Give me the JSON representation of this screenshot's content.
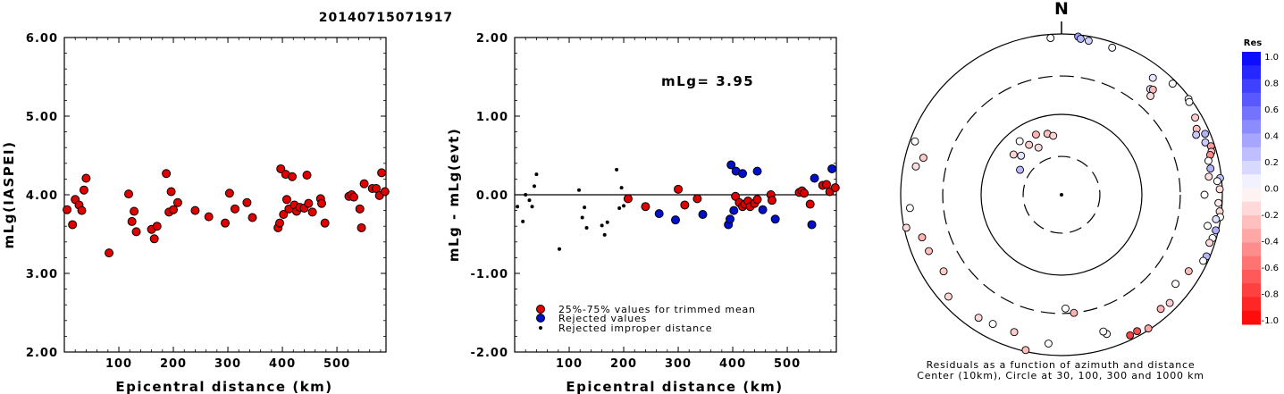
{
  "title": "20140715071917",
  "colors": {
    "accepted": "#e00000",
    "rejected": "#0010c8",
    "improper": "#000000"
  },
  "chart_data": [
    {
      "type": "scatter",
      "xlabel": "Epicentral distance (km)",
      "ylabel": "mLg(IASPEI)",
      "xlim": [
        0,
        590
      ],
      "ylim": [
        2.0,
        6.0
      ],
      "x_ticks": [
        "100",
        "200",
        "300",
        "400",
        "500"
      ],
      "y_ticks": [
        "2.00",
        "3.00",
        "4.00",
        "5.00",
        "6.00"
      ],
      "series": [
        {
          "points": [
            [
              5,
              3.81
            ],
            [
              15,
              3.62
            ],
            [
              20,
              3.94
            ],
            [
              27,
              3.87
            ],
            [
              32,
              3.8
            ],
            [
              36,
              4.06
            ],
            [
              40,
              4.21
            ],
            [
              82,
              3.26
            ],
            [
              118,
              4.01
            ],
            [
              124,
              3.66
            ],
            [
              128,
              3.79
            ],
            [
              132,
              3.53
            ],
            [
              160,
              3.56
            ],
            [
              165,
              3.44
            ],
            [
              170,
              3.6
            ],
            [
              187,
              4.27
            ],
            [
              192,
              3.78
            ],
            [
              196,
              4.04
            ],
            [
              200,
              3.81
            ],
            [
              208,
              3.9
            ],
            [
              240,
              3.8
            ],
            [
              265,
              3.72
            ],
            [
              295,
              3.64
            ],
            [
              303,
              4.02
            ],
            [
              313,
              3.82
            ],
            [
              335,
              3.9
            ],
            [
              345,
              3.71
            ],
            [
              392,
              3.58
            ],
            [
              395,
              3.64
            ],
            [
              397,
              4.33
            ],
            [
              402,
              3.75
            ],
            [
              406,
              4.26
            ],
            [
              408,
              3.94
            ],
            [
              412,
              3.82
            ],
            [
              418,
              4.23
            ],
            [
              422,
              3.87
            ],
            [
              426,
              3.79
            ],
            [
              432,
              3.84
            ],
            [
              440,
              3.83
            ],
            [
              445,
              4.25
            ],
            [
              448,
              3.89
            ],
            [
              455,
              3.78
            ],
            [
              470,
              3.95
            ],
            [
              472,
              3.89
            ],
            [
              478,
              3.64
            ],
            [
              522,
              3.98
            ],
            [
              527,
              4.0
            ],
            [
              531,
              3.97
            ],
            [
              542,
              3.82
            ],
            [
              545,
              3.58
            ],
            [
              550,
              4.14
            ],
            [
              565,
              4.08
            ],
            [
              572,
              4.08
            ],
            [
              578,
              3.99
            ],
            [
              582,
              4.28
            ],
            [
              588,
              4.04
            ]
          ]
        }
      ]
    },
    {
      "type": "scatter",
      "xlabel": "Epicentral distance (km)",
      "ylabel": "mLg - mLg(evt)",
      "annotation": "mLg= 3.95",
      "xlim": [
        0,
        590
      ],
      "ylim": [
        -2.0,
        2.0
      ],
      "x_ticks": [
        "100",
        "200",
        "300",
        "400",
        "500"
      ],
      "y_ticks": [
        "-2.00",
        "-1.00",
        "0.00",
        "1.00",
        "2.00"
      ],
      "series": [
        {
          "name": "25%-75% values for trimmed mean",
          "points": [
            [
              208,
              -0.05
            ],
            [
              240,
              -0.15
            ],
            [
              300,
              0.07
            ],
            [
              312,
              -0.13
            ],
            [
              335,
              -0.05
            ],
            [
              405,
              -0.02
            ],
            [
              412,
              -0.1
            ],
            [
              418,
              -0.15
            ],
            [
              422,
              -0.12
            ],
            [
              428,
              -0.08
            ],
            [
              432,
              -0.15
            ],
            [
              440,
              -0.11
            ],
            [
              445,
              -0.06
            ],
            [
              470,
              0.0
            ],
            [
              472,
              -0.07
            ],
            [
              522,
              0.03
            ],
            [
              527,
              0.05
            ],
            [
              531,
              0.02
            ],
            [
              542,
              -0.12
            ],
            [
              565,
              0.12
            ],
            [
              572,
              0.13
            ],
            [
              578,
              0.04
            ],
            [
              588,
              0.09
            ]
          ]
        },
        {
          "name": "Rejected values",
          "points": [
            [
              265,
              -0.24
            ],
            [
              295,
              -0.32
            ],
            [
              345,
              -0.25
            ],
            [
              392,
              -0.38
            ],
            [
              395,
              -0.31
            ],
            [
              397,
              0.38
            ],
            [
              402,
              -0.2
            ],
            [
              406,
              0.3
            ],
            [
              418,
              0.27
            ],
            [
              445,
              0.3
            ],
            [
              455,
              -0.19
            ],
            [
              478,
              -0.31
            ],
            [
              545,
              -0.38
            ],
            [
              550,
              0.21
            ],
            [
              582,
              0.33
            ]
          ]
        },
        {
          "name": "Rejected improper distance",
          "points": [
            [
              5,
              -0.15
            ],
            [
              15,
              -0.34
            ],
            [
              20,
              0.0
            ],
            [
              27,
              -0.07
            ],
            [
              32,
              -0.15
            ],
            [
              36,
              0.11
            ],
            [
              40,
              0.26
            ],
            [
              82,
              -0.69
            ],
            [
              118,
              0.06
            ],
            [
              124,
              -0.29
            ],
            [
              128,
              -0.16
            ],
            [
              132,
              -0.42
            ],
            [
              160,
              -0.39
            ],
            [
              165,
              -0.51
            ],
            [
              170,
              -0.35
            ],
            [
              187,
              0.32
            ],
            [
              192,
              -0.17
            ],
            [
              196,
              0.09
            ],
            [
              200,
              -0.14
            ]
          ]
        }
      ]
    },
    {
      "type": "polar-scatter",
      "north_label": "N",
      "caption_line1": "Residuals as a function of azimuth and distance",
      "caption_line2": "Center (10km), Circle at 30, 100, 300 and 1000 km",
      "colorbar_title": "Res",
      "colorbar_labels": [
        "1.0",
        "0.8",
        "0.6",
        "0.4",
        "0.2",
        "0.0",
        "-0.2",
        "-0.4",
        "-0.6",
        "-0.8",
        "-1.0"
      ],
      "points": [
        [
          6,
          0.38
        ],
        [
          7,
          0.29
        ],
        [
          10,
          0.18
        ],
        [
          19,
          0.04
        ],
        [
          38,
          0.1
        ],
        [
          40,
          0.12
        ],
        [
          41,
          -0.28
        ],
        [
          42,
          -0.13
        ],
        [
          45,
          0.0
        ],
        [
          53,
          0.0
        ],
        [
          54,
          0.0
        ],
        [
          60,
          -0.2
        ],
        [
          64,
          -0.26
        ],
        [
          66,
          0.21
        ],
        [
          67,
          0.3
        ],
        [
          70,
          0.2
        ],
        [
          72,
          -0.38
        ],
        [
          74,
          -0.22
        ],
        [
          75,
          -0.45
        ],
        [
          77,
          0.0
        ],
        [
          80,
          0.3
        ],
        [
          83,
          -0.12
        ],
        [
          84,
          0.24
        ],
        [
          85,
          0.0
        ],
        [
          88,
          -0.13
        ],
        [
          90,
          0.0
        ],
        [
          93,
          -0.08
        ],
        [
          96,
          -0.16
        ],
        [
          98,
          0.0
        ],
        [
          99,
          0.12
        ],
        [
          102,
          0.0
        ],
        [
          103,
          0.32
        ],
        [
          106,
          0.0
        ],
        [
          108,
          -0.14
        ],
        [
          113,
          0.28
        ],
        [
          115,
          0.0
        ],
        [
          121,
          -0.27
        ],
        [
          128,
          0.0
        ],
        [
          135,
          -0.19
        ],
        [
          139,
          -0.3
        ],
        [
          147,
          -0.36
        ],
        [
          151,
          -0.7
        ],
        [
          154,
          -0.74
        ],
        [
          162,
          0.0
        ],
        [
          163,
          0.0
        ],
        [
          174,
          -0.31
        ],
        [
          178,
          0.0
        ],
        [
          185,
          0.0
        ],
        [
          193,
          -0.26
        ],
        [
          199,
          -0.2
        ],
        [
          208,
          0.0
        ],
        [
          214,
          -0.14
        ],
        [
          228,
          -0.16
        ],
        [
          237,
          -0.2
        ],
        [
          247,
          -0.25
        ],
        [
          253,
          -0.3
        ],
        [
          258,
          -0.15
        ],
        [
          265,
          0.0
        ],
        [
          281,
          -0.12
        ],
        [
          285,
          -0.2
        ],
        [
          290,
          0.0
        ],
        [
          301,
          0.27
        ],
        [
          310,
          -0.17
        ],
        [
          314,
          0.1
        ],
        [
          322,
          0.0
        ],
        [
          327,
          -0.2
        ],
        [
          334,
          -0.15
        ],
        [
          337,
          -0.3
        ],
        [
          347,
          -0.25
        ],
        [
          352,
          -0.16
        ],
        [
          356,
          0.0
        ]
      ]
    }
  ]
}
